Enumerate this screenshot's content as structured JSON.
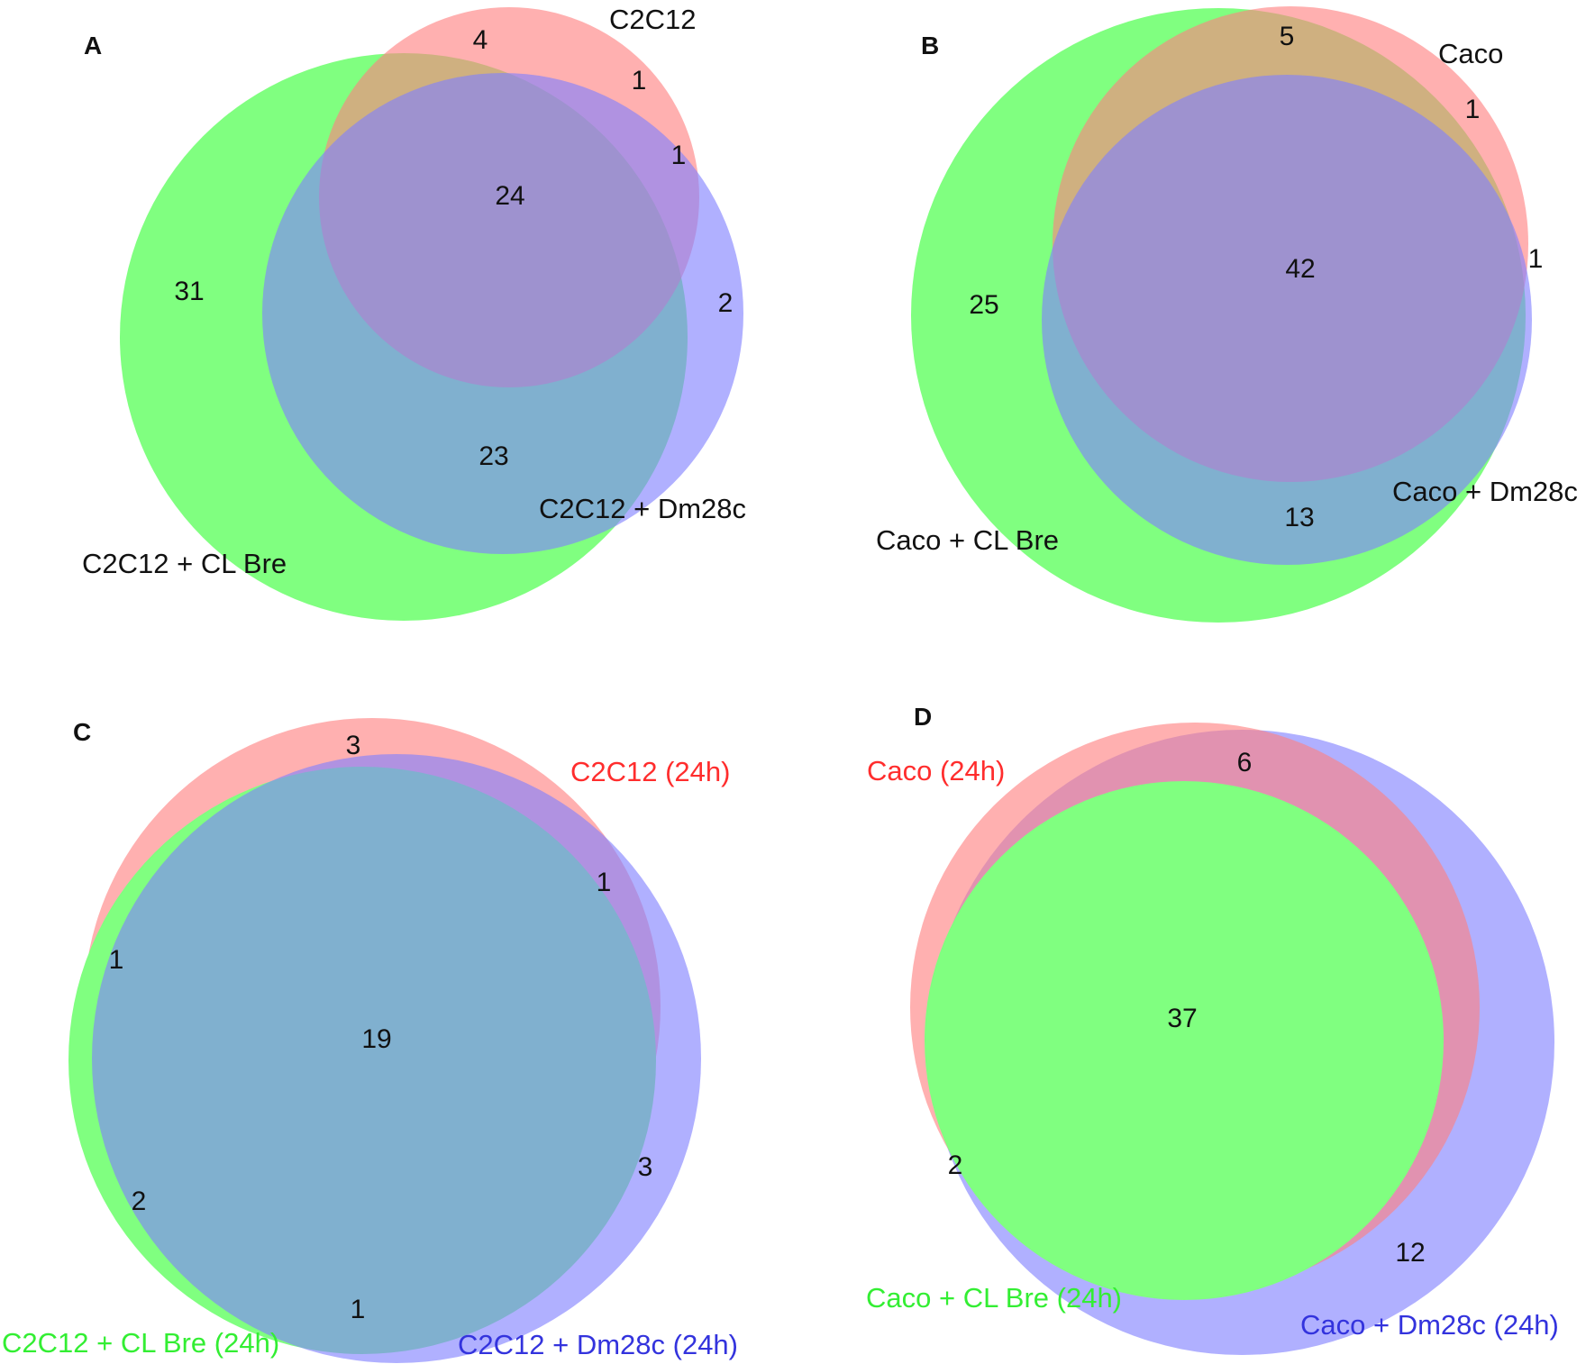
{
  "colors": {
    "red": "#ff7f7f",
    "green": "#80ff80",
    "blue": "#8080ff",
    "red_label": "#ff2d2d",
    "green_label": "#33ee33",
    "blue_label": "#3333dd",
    "dark_label": "#111111"
  },
  "panels": [
    {
      "letter": "A",
      "sets": {
        "red": "C2C12",
        "green": "C2C12 + CL Bre",
        "blue": "C2C12 + Dm28c"
      },
      "counts": {
        "green_only": "31",
        "red_green": "4",
        "red_only": "1",
        "red_blue": "1",
        "all_three": "24",
        "blue_only": "2",
        "green_blue": "23"
      }
    },
    {
      "letter": "B",
      "sets": {
        "red": "Caco",
        "green": "Caco + CL Bre",
        "blue": "Caco + Dm28c"
      },
      "counts": {
        "red_green": "5",
        "red_only": "1",
        "blue_only": "1",
        "all_three": "42",
        "green_only": "25",
        "green_blue": "13"
      }
    },
    {
      "letter": "C",
      "sets": {
        "red": "C2C12 (24h)",
        "green": "C2C12 + CL Bre (24h)",
        "blue": "C2C12 + Dm28c (24h)"
      },
      "counts": {
        "red_only": "3",
        "red_blue": "1",
        "red_green": "1",
        "all_three": "19",
        "blue_only": "3",
        "green_only": "2",
        "green_blue": "1"
      }
    },
    {
      "letter": "D",
      "sets": {
        "red": "Caco (24h)",
        "green": "Caco + CL Bre (24h)",
        "blue": "Caco + Dm28c (24h)"
      },
      "counts": {
        "red_blue": "6",
        "all_three": "37",
        "green_blue": "2",
        "blue_only": "12"
      }
    }
  ]
}
